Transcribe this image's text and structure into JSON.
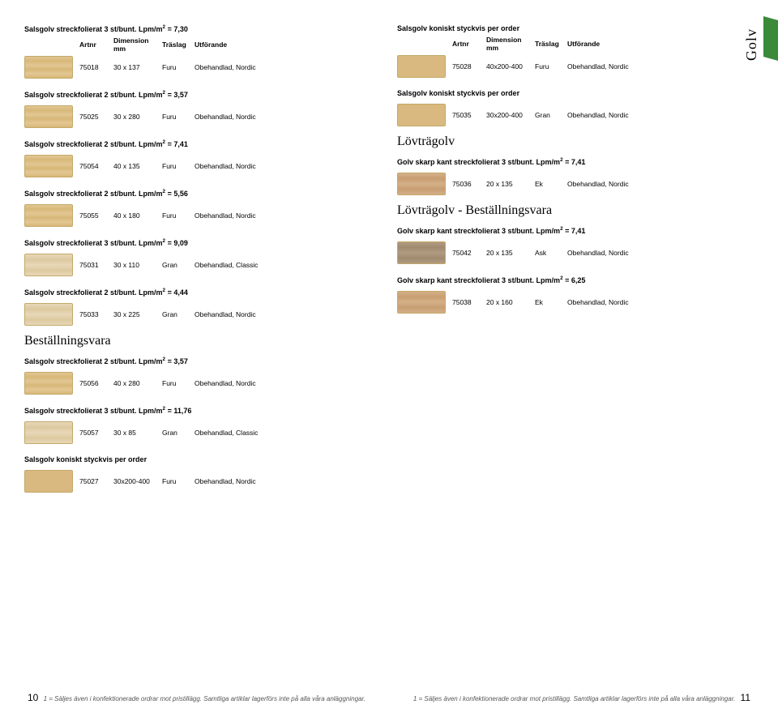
{
  "sideLabel": "Golv",
  "headers": {
    "artnr": "Artnr",
    "dim": "Dimension",
    "dimSub": "mm",
    "tra": "Träslag",
    "utf": "Utförande"
  },
  "left": [
    {
      "title": "Salsgolv streckfolierat 3 st/bunt. Lpm/m² = 7,30",
      "showHeader": true,
      "rows": [
        {
          "swatch": "furu",
          "art": "75018",
          "dim": "30 x 137",
          "tra": "Furu",
          "utf": "Obehandlad, Nordic"
        }
      ]
    },
    {
      "title": "Salsgolv streckfolierat 2 st/bunt. Lpm/m² = 3,57",
      "rows": [
        {
          "swatch": "furu",
          "art": "75025",
          "dim": "30 x 280",
          "tra": "Furu",
          "utf": "Obehandlad, Nordic"
        }
      ]
    },
    {
      "title": "Salsgolv streckfolierat 2 st/bunt. Lpm/m² = 7,41",
      "rows": [
        {
          "swatch": "furu",
          "art": "75054",
          "dim": "40 x 135",
          "tra": "Furu",
          "utf": "Obehandlad, Nordic"
        }
      ]
    },
    {
      "title": "Salsgolv streckfolierat 2 st/bunt. Lpm/m² = 5,56",
      "rows": [
        {
          "swatch": "furu",
          "art": "75055",
          "dim": "40 x 180",
          "tra": "Furu",
          "utf": "Obehandlad, Nordic"
        }
      ]
    },
    {
      "title": "Salsgolv streckfolierat 3 st/bunt. Lpm/m² = 9,09",
      "rows": [
        {
          "swatch": "gran",
          "art": "75031",
          "dim": "30 x 110",
          "tra": "Gran",
          "utf": "Obehandlad, Classic"
        }
      ]
    },
    {
      "title": "Salsgolv streckfolierat 2 st/bunt. Lpm/m² = 4,44",
      "rows": [
        {
          "swatch": "gran",
          "art": "75033",
          "dim": "30 x 225",
          "tra": "Gran",
          "utf": "Obehandlad, Nordic"
        }
      ]
    },
    {
      "bigTitle": "Beställningsvara"
    },
    {
      "title": "Salsgolv streckfolierat 2 st/bunt. Lpm/m² = 3,57",
      "rows": [
        {
          "swatch": "furu",
          "art": "75056",
          "dim": "40 x 280",
          "tra": "Furu",
          "utf": "Obehandlad, Nordic"
        }
      ]
    },
    {
      "title": "Salsgolv streckfolierat 3 st/bunt. Lpm/m² = 11,76",
      "rows": [
        {
          "swatch": "gran",
          "art": "75057",
          "dim": "30 x 85",
          "tra": "Gran",
          "utf": "Obehandlad, Classic"
        }
      ]
    },
    {
      "title": "Salsgolv koniskt styckvis per order",
      "rows": [
        {
          "swatch": "solid",
          "art": "75027",
          "dim": "30x200-400",
          "tra": "Furu",
          "utf": "Obehandlad, Nordic"
        }
      ]
    }
  ],
  "right": [
    {
      "title": "Salsgolv koniskt styckvis per order",
      "showHeader": true,
      "rows": [
        {
          "swatch": "solid",
          "art": "75028",
          "dim": "40x200-400",
          "tra": "Furu",
          "utf": "Obehandlad, Nordic"
        }
      ]
    },
    {
      "title": "Salsgolv koniskt styckvis per order",
      "rows": [
        {
          "swatch": "solid",
          "art": "75035",
          "dim": "30x200-400",
          "tra": "Gran",
          "utf": "Obehandlad, Nordic"
        }
      ]
    },
    {
      "bigTitle": "Lövträgolv"
    },
    {
      "title": "Golv skarp kant streckfolierat 3 st/bunt. Lpm/m² = 7,41",
      "rows": [
        {
          "swatch": "ek",
          "art": "75036",
          "dim": "20 x 135",
          "tra": "Ek",
          "utf": "Obehandlad, Nordic"
        }
      ]
    },
    {
      "bigTitle": "Lövträgolv - Beställningsvara"
    },
    {
      "title": "Golv skarp kant streckfolierat 3 st/bunt. Lpm/m² = 7,41",
      "rows": [
        {
          "swatch": "ask",
          "art": "75042",
          "dim": "20 x 135",
          "tra": "Ask",
          "utf": "Obehandlad, Nordic"
        }
      ]
    },
    {
      "title": "Golv skarp kant streckfolierat 3 st/bunt. Lpm/m² = 6,25",
      "rows": [
        {
          "swatch": "ek",
          "art": "75038",
          "dim": "20 x 160",
          "tra": "Ek",
          "utf": "Obehandlad, Nordic"
        }
      ]
    }
  ],
  "footer": {
    "leftNum": "10",
    "leftText": "1 = Säljes även i konfektionerade ordrar mot pristillägg. Samtliga artiklar lagerförs inte på alla våra anläggningar.",
    "rightText": "1 = Säljes även i konfektionerade ordrar mot pristillägg. Samtliga artiklar lagerförs inte på alla våra anläggningar.",
    "rightNum": "11"
  }
}
